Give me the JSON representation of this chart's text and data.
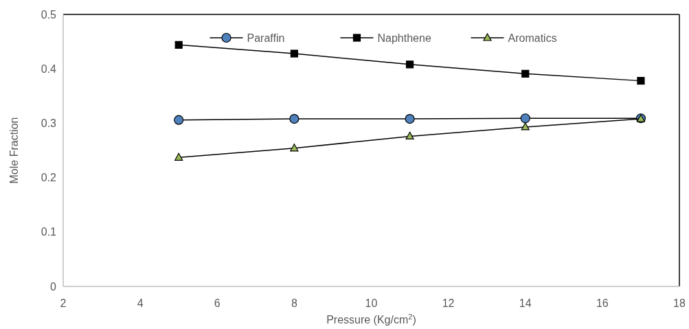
{
  "chart_data": {
    "type": "line",
    "xlabel": "Pressure (Kg/cm$^{2}$)",
    "ylabel": "Mole Fraction",
    "x": [
      5,
      8,
      11,
      14,
      17
    ],
    "xlim": [
      2,
      18
    ],
    "xticks": [
      2,
      4,
      6,
      8,
      10,
      12,
      14,
      16,
      18
    ],
    "ylim": [
      0,
      0.5
    ],
    "yticks": [
      0,
      0.1,
      0.2,
      0.3,
      0.4,
      0.5
    ],
    "grid": false,
    "legend": "top",
    "series": [
      {
        "name": "Paraffin",
        "color": "#4f81bd",
        "marker": "circle",
        "values": [
          0.306,
          0.308,
          0.308,
          0.309,
          0.309
        ]
      },
      {
        "name": "Naphthene",
        "color": "#000000",
        "marker": "square",
        "values": [
          0.444,
          0.428,
          0.408,
          0.391,
          0.378
        ]
      },
      {
        "name": "Aromatics",
        "color": "#9bbb59",
        "marker": "triangle",
        "values": [
          0.237,
          0.254,
          0.276,
          0.293,
          0.308
        ]
      }
    ]
  }
}
